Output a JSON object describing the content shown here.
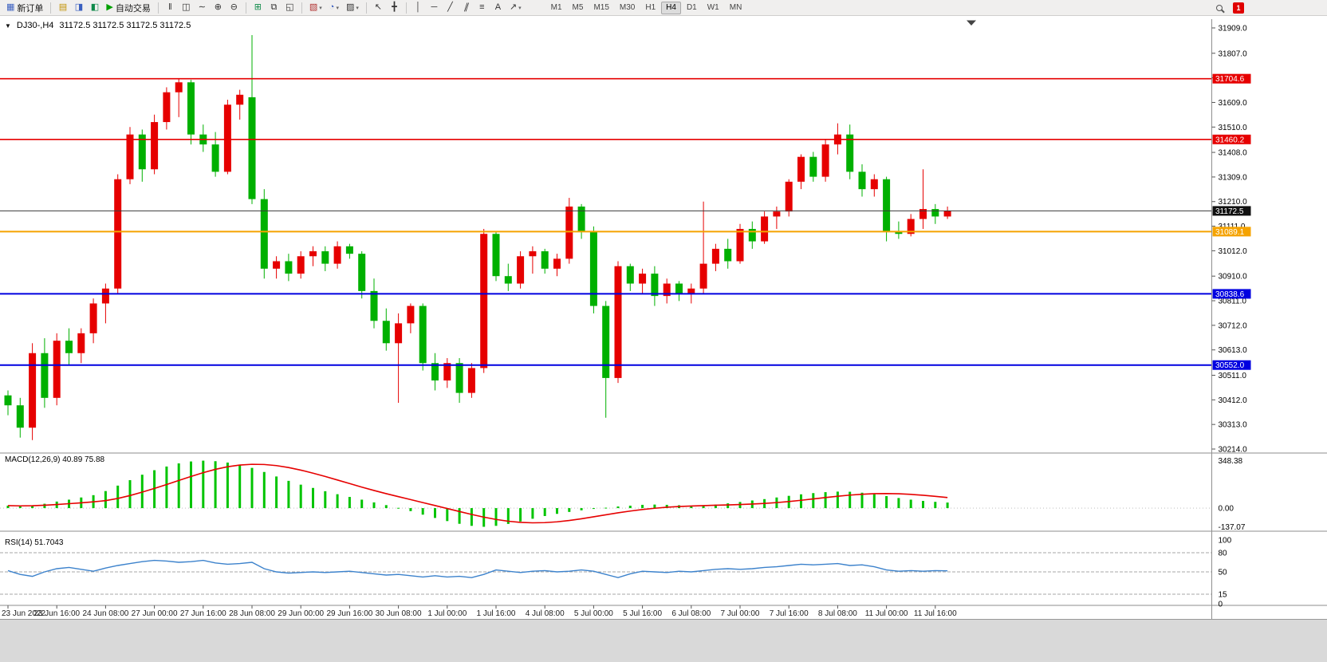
{
  "colors": {
    "candle_up": "#e60000",
    "candle_down": "#00b000",
    "macd_hist": "#00c400",
    "macd_signal": "#e60000",
    "rsi_line": "#3c82cc",
    "separator": "#8e8e8e",
    "axis_text": "#000000"
  },
  "toolbar": {
    "new_order": {
      "label": "新订单",
      "icon": "▦"
    },
    "auto_trading": {
      "label": "自动交易",
      "icon": "▶"
    },
    "icons": {
      "market_watch": "▤",
      "data_window": "◨",
      "navigator": "◧",
      "bars_chart": "‖",
      "candle_chart": "◫",
      "line_chart": "∼",
      "zoom_in": "⊕",
      "zoom_out": "⊖",
      "tile_windows": "⊞",
      "cascade_windows": "⧉",
      "arrange_windows": "◱",
      "new_chart": "▧",
      "periods": "◔",
      "templates": "▨",
      "cursor": "↖",
      "crosshair": "╋",
      "vline": "│",
      "hline": "─",
      "trendline": "╱",
      "channel": "∥",
      "fibonacci": "≡",
      "text": "A",
      "arrows": "↗",
      "dropdown": "▾"
    },
    "timeframes": [
      "M1",
      "M5",
      "M15",
      "M30",
      "H1",
      "H4",
      "D1",
      "W1",
      "MN"
    ],
    "active_timeframe": "H4",
    "notification_count": "1"
  },
  "window": {
    "collapse_icon": "▼",
    "symbol_title": "DJ30-,H4",
    "ohlc": "31172.5 31172.5 31172.5 31172.5"
  },
  "chart_data": {
    "type": "candlestick",
    "symbol": "DJ30-",
    "timeframe": "H4",
    "price_range": [
      30214.0,
      31909.0
    ],
    "price_ticks": [
      31909.0,
      31807.0,
      31708.0,
      31609.0,
      31510.0,
      31408.0,
      31309.0,
      31210.0,
      31111.0,
      31012.0,
      30910.0,
      30811.0,
      30712.0,
      30613.0,
      30511.0,
      30412.0,
      30313.0,
      30214.0
    ],
    "hlines": [
      {
        "price": 31704.6,
        "label": "31704.6",
        "color": "#e60000",
        "width": 1.6
      },
      {
        "price": 31460.2,
        "label": "31460.2",
        "color": "#e60000",
        "width": 1.6
      },
      {
        "price": 31172.5,
        "label": "31172.5",
        "color": "#3a3a3a",
        "width": 1,
        "badge": "#111111",
        "role": "current-price"
      },
      {
        "price": 31089.1,
        "label": "31089.1",
        "color": "#f5a300",
        "width": 2
      },
      {
        "price": 30838.6,
        "label": "30838.6",
        "color": "#0000e0",
        "width": 2
      },
      {
        "price": 30552.0,
        "label": "30552.0",
        "color": "#0000e0",
        "width": 2
      }
    ],
    "time_labels": [
      "23 Jun 2022",
      "23 Jun 16:00",
      "24 Jun 08:00",
      "27 Jun 00:00",
      "27 Jun 16:00",
      "28 Jun 08:00",
      "29 Jun 00:00",
      "29 Jun 16:00",
      "30 Jun 08:00",
      "1 Jul 00:00",
      "1 Jul 16:00",
      "4 Jul 08:00",
      "5 Jul 00:00",
      "5 Jul 16:00",
      "6 Jul 08:00",
      "7 Jul 00:00",
      "7 Jul 16:00",
      "8 Jul 08:00",
      "11 Jul 00:00",
      "11 Jul 16:00"
    ],
    "candles_per_label": 4,
    "candles": [
      [
        30430,
        30450,
        30350,
        30390
      ],
      [
        30390,
        30420,
        30260,
        30300
      ],
      [
        30300,
        30640,
        30250,
        30600
      ],
      [
        30600,
        30660,
        30380,
        30420
      ],
      [
        30420,
        30680,
        30390,
        30650
      ],
      [
        30650,
        30700,
        30550,
        30600
      ],
      [
        30600,
        30700,
        30560,
        30680
      ],
      [
        30680,
        30820,
        30640,
        30800
      ],
      [
        30800,
        30880,
        30720,
        30860
      ],
      [
        30860,
        31320,
        30840,
        31300
      ],
      [
        31300,
        31510,
        31280,
        31480
      ],
      [
        31480,
        31500,
        31290,
        31340
      ],
      [
        31340,
        31560,
        31320,
        31530
      ],
      [
        31530,
        31670,
        31500,
        31650
      ],
      [
        31650,
        31705,
        31550,
        31690
      ],
      [
        31690,
        31700,
        31440,
        31480
      ],
      [
        31480,
        31520,
        31410,
        31440
      ],
      [
        31440,
        31490,
        31310,
        31330
      ],
      [
        31330,
        31620,
        31320,
        31600
      ],
      [
        31600,
        31660,
        31540,
        31640
      ],
      [
        31630,
        31880,
        31200,
        31220
      ],
      [
        31220,
        31260,
        30900,
        30940
      ],
      [
        30940,
        30990,
        30900,
        30970
      ],
      [
        30970,
        31000,
        30890,
        30920
      ],
      [
        30920,
        31010,
        30900,
        30990
      ],
      [
        30990,
        31030,
        30950,
        31010
      ],
      [
        31010,
        31030,
        30930,
        30960
      ],
      [
        30960,
        31050,
        30940,
        31030
      ],
      [
        31030,
        31040,
        30980,
        31000
      ],
      [
        31000,
        31010,
        30820,
        30850
      ],
      [
        30850,
        30900,
        30700,
        30730
      ],
      [
        30730,
        30780,
        30610,
        30640
      ],
      [
        30640,
        30760,
        30400,
        30720
      ],
      [
        30720,
        30800,
        30680,
        30790
      ],
      [
        30790,
        30800,
        30530,
        30560
      ],
      [
        30560,
        30600,
        30450,
        30490
      ],
      [
        30490,
        30580,
        30460,
        30560
      ],
      [
        30560,
        30580,
        30400,
        30440
      ],
      [
        30440,
        30560,
        30420,
        30540
      ],
      [
        30540,
        31100,
        30520,
        31080
      ],
      [
        31080,
        31090,
        30890,
        30910
      ],
      [
        30910,
        30960,
        30850,
        30880
      ],
      [
        30880,
        31010,
        30860,
        30990
      ],
      [
        30990,
        31030,
        30920,
        31010
      ],
      [
        31010,
        31020,
        30920,
        30940
      ],
      [
        30940,
        31000,
        30910,
        30980
      ],
      [
        30980,
        31225,
        30960,
        31190
      ],
      [
        31190,
        31200,
        31060,
        31090
      ],
      [
        31090,
        31110,
        30760,
        30790
      ],
      [
        30790,
        30810,
        30340,
        30500
      ],
      [
        30500,
        30970,
        30480,
        30950
      ],
      [
        30950,
        30960,
        30850,
        30880
      ],
      [
        30880,
        30940,
        30840,
        30920
      ],
      [
        30920,
        30950,
        30790,
        30830
      ],
      [
        30830,
        30900,
        30800,
        30880
      ],
      [
        30880,
        30890,
        30810,
        30840
      ],
      [
        30840,
        30880,
        30800,
        30860
      ],
      [
        30860,
        31210,
        30840,
        30960
      ],
      [
        30960,
        31040,
        30930,
        31020
      ],
      [
        31020,
        31060,
        30940,
        30970
      ],
      [
        30970,
        31120,
        30960,
        31100
      ],
      [
        31100,
        31130,
        31020,
        31050
      ],
      [
        31050,
        31170,
        31040,
        31150
      ],
      [
        31150,
        31190,
        31100,
        31170
      ],
      [
        31170,
        31300,
        31150,
        31290
      ],
      [
        31290,
        31400,
        31260,
        31390
      ],
      [
        31390,
        31410,
        31290,
        31310
      ],
      [
        31310,
        31460,
        31290,
        31440
      ],
      [
        31440,
        31525,
        31400,
        31480
      ],
      [
        31480,
        31520,
        31300,
        31330
      ],
      [
        31330,
        31360,
        31230,
        31260
      ],
      [
        31260,
        31320,
        31230,
        31300
      ],
      [
        31300,
        31310,
        31050,
        31090
      ],
      [
        31090,
        31130,
        31060,
        31080
      ],
      [
        31080,
        31160,
        31070,
        31140
      ],
      [
        31140,
        31340,
        31100,
        31180
      ],
      [
        31180,
        31200,
        31120,
        31150
      ],
      [
        31150,
        31190,
        31140,
        31172.5
      ]
    ],
    "macd": {
      "display": "MACD(12,26,9) 40.89 75.88",
      "title": "MACD(12,26,9)",
      "main": 40.89,
      "signal": 75.88,
      "range": [
        -137.07,
        348.38
      ],
      "axis_labels": [
        "348.38",
        "0.00",
        "-137.07"
      ],
      "hist": [
        18,
        15,
        20,
        32,
        48,
        62,
        78,
        95,
        125,
        165,
        205,
        245,
        278,
        305,
        328,
        342,
        348,
        344,
        334,
        318,
        295,
        265,
        232,
        200,
        172,
        148,
        124,
        102,
        82,
        62,
        42,
        22,
        2,
        -22,
        -48,
        -72,
        -95,
        -115,
        -130,
        -137,
        -130,
        -116,
        -98,
        -78,
        -58,
        -42,
        -28,
        -16,
        -6,
        3,
        12,
        18,
        24,
        26,
        24,
        21,
        18,
        20,
        26,
        35,
        45,
        56,
        66,
        78,
        90,
        101,
        110,
        117,
        121,
        120,
        113,
        102,
        88,
        74,
        62,
        53,
        46,
        40.89
      ]
    },
    "rsi": {
      "display": "RSI(14) 51.7043",
      "title": "RSI(14)",
      "value": 51.7043,
      "levels": [
        80,
        50,
        15
      ],
      "axis_labels": [
        "100",
        "80",
        "50",
        "15",
        "0"
      ],
      "values": [
        52,
        46,
        43,
        50,
        55,
        57,
        54,
        51,
        56,
        60,
        63,
        66,
        68,
        67,
        65,
        66,
        68,
        64,
        62,
        63,
        65,
        55,
        50,
        48,
        49,
        50,
        49,
        50,
        51,
        49,
        47,
        45,
        46,
        44,
        42,
        44,
        42,
        43,
        41,
        46,
        53,
        51,
        49,
        51,
        52,
        50,
        51,
        53,
        51,
        46,
        41,
        47,
        51,
        50,
        49,
        51,
        50,
        52,
        54,
        55,
        54,
        55,
        57,
        58,
        60,
        62,
        61,
        62,
        63,
        60,
        61,
        58,
        53,
        51,
        52,
        51,
        52,
        51.7
      ]
    }
  }
}
